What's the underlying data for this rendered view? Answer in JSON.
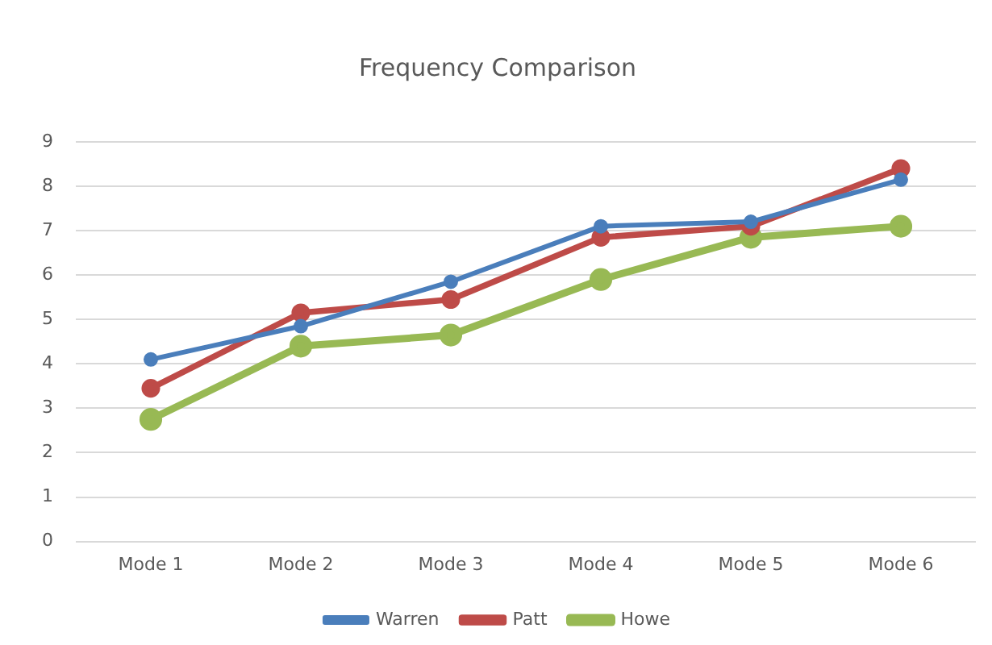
{
  "chart_data": {
    "type": "line",
    "title": "Frequency Comparison",
    "categories": [
      "Mode 1",
      "Mode 2",
      "Mode 3",
      "Mode 4",
      "Mode 5",
      "Mode 6"
    ],
    "series": [
      {
        "name": "Warren",
        "color": "#4a7ebb",
        "values": [
          4.1,
          4.85,
          5.85,
          7.1,
          7.2,
          8.15
        ]
      },
      {
        "name": "Patt",
        "color": "#be4b48",
        "values": [
          3.45,
          5.15,
          5.45,
          6.85,
          7.1,
          8.4
        ]
      },
      {
        "name": "Howe",
        "color": "#98b954",
        "values": [
          2.75,
          4.4,
          4.65,
          5.9,
          6.85,
          7.1
        ]
      }
    ],
    "ylim": [
      0,
      9
    ],
    "yticks": [
      0,
      1,
      2,
      3,
      4,
      5,
      6,
      7,
      8,
      9
    ],
    "grid": "y",
    "legend": "bottom",
    "marker": "circle",
    "line_style": "solid"
  }
}
